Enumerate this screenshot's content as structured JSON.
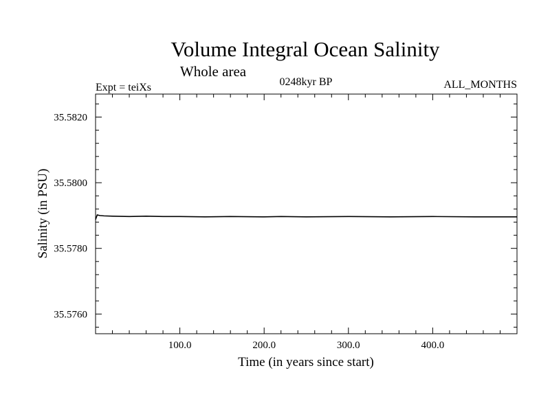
{
  "chart_data": {
    "type": "line",
    "title": "Volume Integral Ocean Salinity",
    "subtitle": "Whole area",
    "annotations": {
      "left": "Expt = teiXs",
      "center": "0248kyr BP",
      "right": "ALL_MONTHS"
    },
    "xlabel": "Time (in years since start)",
    "ylabel": "Salinity (in PSU)",
    "xlim": [
      0,
      500
    ],
    "ylim": [
      35.5754,
      35.5827
    ],
    "x_ticks": [
      100,
      200,
      300,
      400
    ],
    "x_tick_labels": [
      "100.0",
      "200.0",
      "300.0",
      "400.0"
    ],
    "y_ticks": [
      35.576,
      35.578,
      35.58,
      35.582
    ],
    "y_tick_labels": [
      "35.5760",
      "35.5780",
      "35.5800",
      "35.5820"
    ],
    "grid": false,
    "series": [
      {
        "x": [
          0,
          2,
          5,
          10,
          20,
          40,
          60,
          80,
          100,
          130,
          160,
          200,
          220,
          250,
          300,
          350,
          400,
          450,
          500
        ],
        "values": [
          35.57888,
          35.57902,
          35.579,
          35.57899,
          35.57898,
          35.57897,
          35.57898,
          35.57897,
          35.57897,
          35.57896,
          35.57897,
          35.57896,
          35.57897,
          35.57896,
          35.57897,
          35.57896,
          35.57897,
          35.57896,
          35.57896
        ],
        "color": "#000000"
      }
    ]
  }
}
